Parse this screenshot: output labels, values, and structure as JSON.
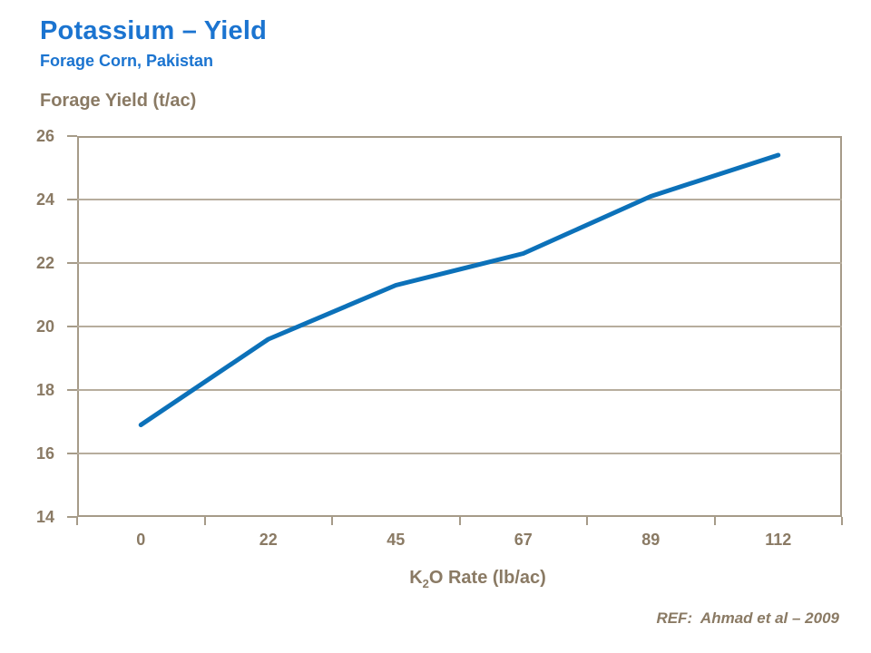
{
  "header": {
    "title": "Potassium – Yield",
    "subtitle": "Forage Corn, Pakistan"
  },
  "chart_data": {
    "type": "line",
    "title": "",
    "ylabel": "Forage Yield (t/ac)",
    "xlabel": "K₂O Rate (lb/ac)",
    "xlabel_parts": {
      "base": "K",
      "sub": "2",
      "rest": "O Rate (lb/ac)"
    },
    "categories": [
      "0",
      "22",
      "45",
      "67",
      "89",
      "112"
    ],
    "values": [
      16.9,
      19.6,
      21.3,
      22.3,
      24.1,
      25.4
    ],
    "ylim": [
      14,
      26
    ],
    "yticks": [
      26,
      24,
      22,
      20,
      18,
      16,
      14
    ],
    "ytick_step": 2,
    "grid": "horizontal-only",
    "legend": "none",
    "line_color": "#0C71B9",
    "line_width": 5
  },
  "footer": {
    "reference": "REF:  Ahmad et al – 2009"
  },
  "colors": {
    "heading_blue": "#1B74D0",
    "series_blue": "#0C71B9",
    "axis_text": "#8A7A64",
    "axis_line": "#A69B89",
    "gridline": "#B7AD9D",
    "background": "#FFFFFF"
  }
}
